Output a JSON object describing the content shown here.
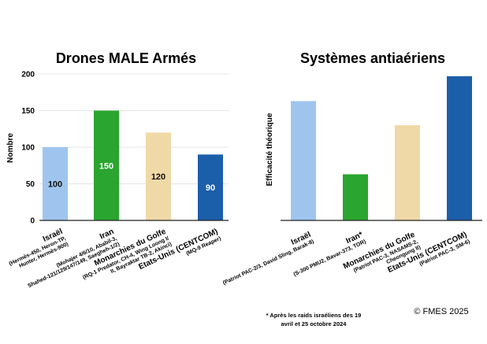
{
  "colors": {
    "israel": "#9fc5ef",
    "iran": "#2aa52f",
    "golfe": "#efd9a6",
    "usa": "#1b5eaa",
    "axis": "#222222",
    "grid": "#e6e6e6"
  },
  "chart_data": [
    {
      "type": "bar",
      "title": "Drones MALE Armés",
      "ylabel": "Nombre",
      "ylim": [
        0,
        200
      ],
      "yticks": [
        0,
        50,
        100,
        150,
        200
      ],
      "grid": true,
      "categories": [
        {
          "label": "Israël",
          "sub": [
            "(Hermès-450, Heron-TP,",
            "Hunter, Hermès-900)"
          ],
          "color": "israel"
        },
        {
          "label": "Iran",
          "sub": [
            "(Mohajer 4/6/10, Ababil-3,",
            "Shahed-121/129/147/149, Saegheh-1/2)"
          ],
          "color": "iran"
        },
        {
          "label": "Monarchies du Golfe",
          "sub": [
            "(RQ-1 Predator, CH-4, Wing Loong I/",
            "II, Bayraktar TB-2, Akinci)"
          ],
          "color": "golfe"
        },
        {
          "label": "Etats-Unis (CENTCOM)",
          "sub": [
            "(MQ-9 Reaper)"
          ],
          "color": "usa"
        }
      ],
      "values": [
        100,
        150,
        120,
        90
      ],
      "data_labels": [
        "100",
        "150",
        "120",
        "90"
      ],
      "data_label_colors": [
        "#111111",
        "#ffffff",
        "#111111",
        "#ffffff"
      ]
    },
    {
      "type": "bar",
      "title": "Systèmes antiaériens",
      "ylabel": "Efficacité théorique",
      "ylim": [
        0,
        200
      ],
      "grid": false,
      "categories": [
        {
          "label": "Israël",
          "sub": [
            "(Patriot PAC-2/3, David Sling, Barak-8)"
          ],
          "color": "israel"
        },
        {
          "label": "Iran*",
          "sub": [
            "(S-300 PMU2, Bavar-373, TOR)"
          ],
          "color": "iran"
        },
        {
          "label": "Monarchies du Golfe",
          "sub": [
            "(Patriot PAC-3, NASAMS-2,",
            "Cheongung II)"
          ],
          "color": "golfe"
        },
        {
          "label": "Etats-Unis (CENTCOM)",
          "sub": [
            "(Patriot PAC-3, SM-6)"
          ],
          "color": "usa"
        }
      ],
      "values": [
        163,
        63,
        130,
        197
      ]
    }
  ],
  "footnote": [
    "* Après les raids israéliens des 19",
    "avril et 25 octobre 2024"
  ],
  "credit": "© FMES 2025"
}
